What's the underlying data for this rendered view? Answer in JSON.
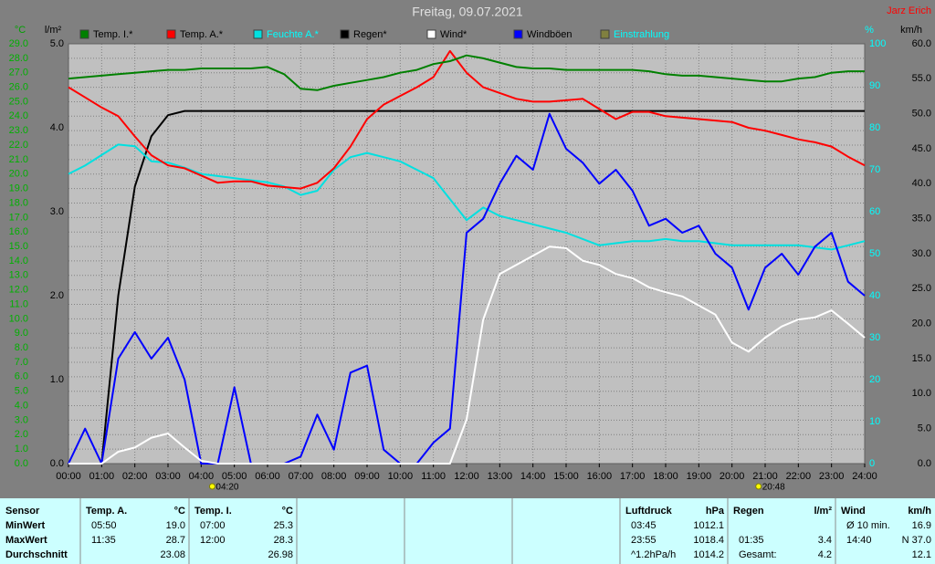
{
  "chart_data": {
    "type": "line",
    "title": "Freitag, 09.07.2021",
    "author": "Jarz Erich",
    "ylabel": "°C",
    "y2label": "l/m²",
    "y3label": "%",
    "y4label": "km/h",
    "grid": true,
    "x": [
      0,
      0.5,
      1,
      1.5,
      2,
      2.5,
      3,
      3.5,
      4,
      4.5,
      5,
      5.5,
      6,
      6.5,
      7,
      7.5,
      8,
      8.5,
      9,
      9.5,
      10,
      10.5,
      11,
      11.5,
      12,
      12.5,
      13,
      13.5,
      14,
      14.5,
      15,
      15.5,
      16,
      16.5,
      17,
      17.5,
      18,
      18.5,
      19,
      19.5,
      20,
      20.5,
      21,
      21.5,
      22,
      22.5,
      23,
      23.5,
      24
    ],
    "xlim": [
      0,
      24
    ],
    "xticks": [
      {
        "value": 0,
        "label": "00:00"
      },
      {
        "value": 1,
        "label": "01:00"
      },
      {
        "value": 2,
        "label": "02:00"
      },
      {
        "value": 3,
        "label": "03:00"
      },
      {
        "value": 4,
        "label": "04:00"
      },
      {
        "value": 5,
        "label": "05:00"
      },
      {
        "value": 6,
        "label": "06:00"
      },
      {
        "value": 7,
        "label": "07:00"
      },
      {
        "value": 8,
        "label": "08:00"
      },
      {
        "value": 9,
        "label": "09:00"
      },
      {
        "value": 10,
        "label": "10:00"
      },
      {
        "value": 11,
        "label": "11:00"
      },
      {
        "value": 12,
        "label": "12:00"
      },
      {
        "value": 13,
        "label": "13:00"
      },
      {
        "value": 14,
        "label": "14:00"
      },
      {
        "value": 15,
        "label": "15:00"
      },
      {
        "value": 16,
        "label": "16:00"
      },
      {
        "value": 17,
        "label": "17:00"
      },
      {
        "value": 18,
        "label": "18:00"
      },
      {
        "value": 19,
        "label": "19:00"
      },
      {
        "value": 20,
        "label": "20:00"
      },
      {
        "value": 21,
        "label": "21:00"
      },
      {
        "value": 22,
        "label": "22:00"
      },
      {
        "value": 23,
        "label": "23:00"
      },
      {
        "value": 24,
        "label": "24:00"
      }
    ],
    "ylim": [
      0,
      29
    ],
    "yticks": [
      {
        "value": 0,
        "label": "0.0"
      },
      {
        "value": 1,
        "label": "1.0"
      },
      {
        "value": 2,
        "label": "2.0"
      },
      {
        "value": 3,
        "label": "3.0"
      },
      {
        "value": 4,
        "label": "4.0"
      },
      {
        "value": 5,
        "label": "5.0"
      },
      {
        "value": 6,
        "label": "6.0"
      },
      {
        "value": 7,
        "label": "7.0"
      },
      {
        "value": 8,
        "label": "8.0"
      },
      {
        "value": 9,
        "label": "9.0"
      },
      {
        "value": 10,
        "label": "10.0"
      },
      {
        "value": 11,
        "label": "11.0"
      },
      {
        "value": 12,
        "label": "12.0"
      },
      {
        "value": 13,
        "label": "13.0"
      },
      {
        "value": 14,
        "label": "14.0"
      },
      {
        "value": 15,
        "label": "15.0"
      },
      {
        "value": 16,
        "label": "16.0"
      },
      {
        "value": 17,
        "label": "17.0"
      },
      {
        "value": 18,
        "label": "18.0"
      },
      {
        "value": 19,
        "label": "19.0"
      },
      {
        "value": 20,
        "label": "20.0"
      },
      {
        "value": 21,
        "label": "21.0"
      },
      {
        "value": 22,
        "label": "22.0"
      },
      {
        "value": 23,
        "label": "23.0"
      },
      {
        "value": 24,
        "label": "24.0"
      },
      {
        "value": 25,
        "label": "25.0"
      },
      {
        "value": 26,
        "label": "26.0"
      },
      {
        "value": 27,
        "label": "27.0"
      },
      {
        "value": 28,
        "label": "28.0"
      },
      {
        "value": 29,
        "label": "29.0"
      }
    ],
    "y2lim": [
      0,
      5
    ],
    "y2ticks": [
      {
        "value": 0,
        "label": "0.0"
      },
      {
        "value": 1,
        "label": "1.0"
      },
      {
        "value": 2,
        "label": "2.0"
      },
      {
        "value": 3,
        "label": "3.0"
      },
      {
        "value": 4,
        "label": "4.0"
      },
      {
        "value": 5,
        "label": "5.0"
      }
    ],
    "y3lim": [
      0,
      100
    ],
    "y3ticks": [
      0,
      10,
      20,
      30,
      40,
      50,
      60,
      70,
      80,
      90,
      100
    ],
    "y4lim": [
      0,
      60
    ],
    "y4ticks": [
      {
        "value": 0,
        "label": "0.0"
      },
      {
        "value": 5,
        "label": "5.0"
      },
      {
        "value": 10,
        "label": "10.0"
      },
      {
        "value": 15,
        "label": "15.0"
      },
      {
        "value": 20,
        "label": "20.0"
      },
      {
        "value": 25,
        "label": "25.0"
      },
      {
        "value": 30,
        "label": "30.0"
      },
      {
        "value": 35,
        "label": "35.0"
      },
      {
        "value": 40,
        "label": "40.0"
      },
      {
        "value": 45,
        "label": "45.0"
      },
      {
        "value": 50,
        "label": "50.0"
      },
      {
        "value": 55,
        "label": "55.0"
      },
      {
        "value": 60,
        "label": "60.0"
      }
    ],
    "annotations": [
      {
        "x": 4.333,
        "label": "04:20"
      },
      {
        "x": 20.8,
        "label": "20:48"
      }
    ],
    "series": [
      {
        "name": "Temp. I.*",
        "color": "#008000",
        "legend_text_color": "#000000",
        "axis": "y",
        "values": [
          26.6,
          26.7,
          26.8,
          26.9,
          27.0,
          27.1,
          27.2,
          27.2,
          27.3,
          27.3,
          27.3,
          27.3,
          27.4,
          26.9,
          25.9,
          25.8,
          26.1,
          26.3,
          26.5,
          26.7,
          27.0,
          27.2,
          27.6,
          27.8,
          28.2,
          28.0,
          27.7,
          27.4,
          27.3,
          27.3,
          27.2,
          27.2,
          27.2,
          27.2,
          27.2,
          27.1,
          26.9,
          26.8,
          26.8,
          26.7,
          26.6,
          26.5,
          26.4,
          26.4,
          26.6,
          26.7,
          27.0,
          27.1,
          27.1
        ]
      },
      {
        "name": "Temp. A.*",
        "color": "#ff0000",
        "legend_text_color": "#000000",
        "axis": "y",
        "values": [
          26.0,
          25.3,
          24.6,
          24.0,
          22.6,
          21.3,
          20.6,
          20.4,
          19.9,
          19.4,
          19.5,
          19.5,
          19.2,
          19.1,
          19.0,
          19.4,
          20.4,
          21.9,
          23.8,
          24.8,
          25.4,
          26.0,
          26.7,
          28.5,
          27.0,
          26.0,
          25.6,
          25.2,
          25.0,
          25.0,
          25.1,
          25.2,
          24.5,
          23.8,
          24.3,
          24.3,
          24.0,
          23.9,
          23.8,
          23.7,
          23.6,
          23.2,
          23.0,
          22.7,
          22.4,
          22.2,
          21.9,
          21.2,
          20.6
        ]
      },
      {
        "name": "Feuchte A.*",
        "color": "#00e0e0",
        "legend_text_color": "#00ffff",
        "axis": "y3",
        "values": [
          69,
          71,
          73.5,
          76,
          75.6,
          72,
          71.7,
          70.5,
          69,
          68.5,
          68,
          67.5,
          67,
          66,
          64,
          65,
          70,
          73,
          74,
          73,
          72,
          70,
          68,
          63,
          58,
          61,
          59,
          58,
          57,
          56,
          55,
          53.5,
          52,
          52.5,
          53,
          53,
          53.5,
          53,
          53,
          52.5,
          52,
          52,
          52,
          52,
          52,
          51.5,
          51,
          52,
          53
        ]
      },
      {
        "name": "Regen*",
        "color": "#000000",
        "legend_text_color": "#000000",
        "axis": "y2",
        "values": [
          0,
          0,
          0,
          2.0,
          3.3,
          3.9,
          4.15,
          4.2,
          4.2,
          4.2,
          4.2,
          4.2,
          4.2,
          4.2,
          4.2,
          4.2,
          4.2,
          4.2,
          4.2,
          4.2,
          4.2,
          4.2,
          4.2,
          4.2,
          4.2,
          4.2,
          4.2,
          4.2,
          4.2,
          4.2,
          4.2,
          4.2,
          4.2,
          4.2,
          4.2,
          4.2,
          4.2,
          4.2,
          4.2,
          4.2,
          4.2,
          4.2,
          4.2,
          4.2,
          4.2,
          4.2,
          4.2,
          4.2,
          4.2
        ]
      },
      {
        "name": "Windböen",
        "color": "#0000ff",
        "legend_text_color": "#000000",
        "axis": "y4",
        "values": [
          0,
          5,
          0,
          15,
          18.8,
          15,
          18,
          12,
          0,
          0,
          10.9,
          0,
          0,
          0,
          1,
          7,
          2,
          13,
          14,
          2,
          0,
          0,
          3,
          5,
          33,
          35,
          40,
          44,
          42,
          50,
          45,
          43,
          40,
          42,
          39,
          34,
          35,
          33,
          34,
          30,
          28,
          22,
          28,
          30,
          27,
          31,
          33,
          26,
          24
        ]
      },
      {
        "name": "Wind*",
        "color": "#ffffff",
        "legend_text_color": "#000000",
        "axis": "y4",
        "values": [
          0,
          0,
          0,
          1.7,
          2.3,
          3.7,
          4.3,
          2.3,
          0.4,
          0,
          0,
          0,
          0,
          0,
          0,
          0,
          0,
          0,
          0,
          0,
          0,
          0,
          0,
          0,
          6.3,
          20.6,
          27.1,
          28.4,
          29.7,
          31,
          30.8,
          29,
          28.4,
          27.1,
          26.5,
          25.2,
          24.5,
          23.9,
          22.6,
          21.3,
          17.3,
          16,
          18,
          19.6,
          20.6,
          20.9,
          21.9,
          20,
          18
        ]
      },
      {
        "name": "Einstrahlung",
        "color": "#808040",
        "legend_text_color": "#00ffff",
        "axis": "y",
        "values": [
          null,
          null,
          null,
          null,
          null,
          null,
          null,
          null,
          null,
          null,
          null,
          null,
          null,
          null,
          null,
          null,
          null,
          null,
          null,
          null,
          null,
          null,
          null,
          null,
          null,
          null,
          null,
          null,
          null,
          null,
          null,
          null,
          null,
          null,
          null,
          null,
          null,
          null,
          null,
          null,
          null,
          null,
          null,
          null,
          null,
          null,
          null,
          null,
          null
        ]
      }
    ],
    "legend_order": [
      0,
      1,
      2,
      3,
      5,
      4,
      6
    ]
  },
  "table": {
    "label_header": "Sensor",
    "row_labels": [
      "MinWert",
      "MaxWert",
      "Durchschnitt"
    ],
    "columns": [
      {
        "header": "Temp. A.",
        "unit": "°C",
        "rows": [
          {
            "time": "05:50",
            "value": "19.0"
          },
          {
            "time": "11:35",
            "value": "28.7"
          },
          {
            "value": "23.08"
          }
        ]
      },
      {
        "header": "Temp. I.",
        "unit": "°C",
        "rows": [
          {
            "time": "07:00",
            "value": "25.3"
          },
          {
            "time": "12:00",
            "value": "28.3"
          },
          {
            "value": "26.98"
          }
        ]
      },
      {
        "header": "Luftdruck",
        "unit": "hPa",
        "rows": [
          {
            "time": "03:45",
            "value": "1012.1"
          },
          {
            "time": "23:55",
            "value": "1018.4"
          },
          {
            "time": "^1.2hPa/h",
            "value": "1014.2"
          }
        ]
      },
      {
        "header": "Regen",
        "unit": "l/m²",
        "rows": [
          null,
          {
            "time": "01:35",
            "value": "3.4"
          },
          {
            "time": "Gesamt:",
            "value": "4.2"
          }
        ]
      },
      {
        "header": "Wind",
        "unit": "km/h",
        "rows": [
          {
            "time": "Ø 10 min.",
            "value": "16.9"
          },
          {
            "time": "14:40",
            "value": "N 37.0"
          },
          {
            "value": "12.1"
          }
        ]
      }
    ]
  }
}
